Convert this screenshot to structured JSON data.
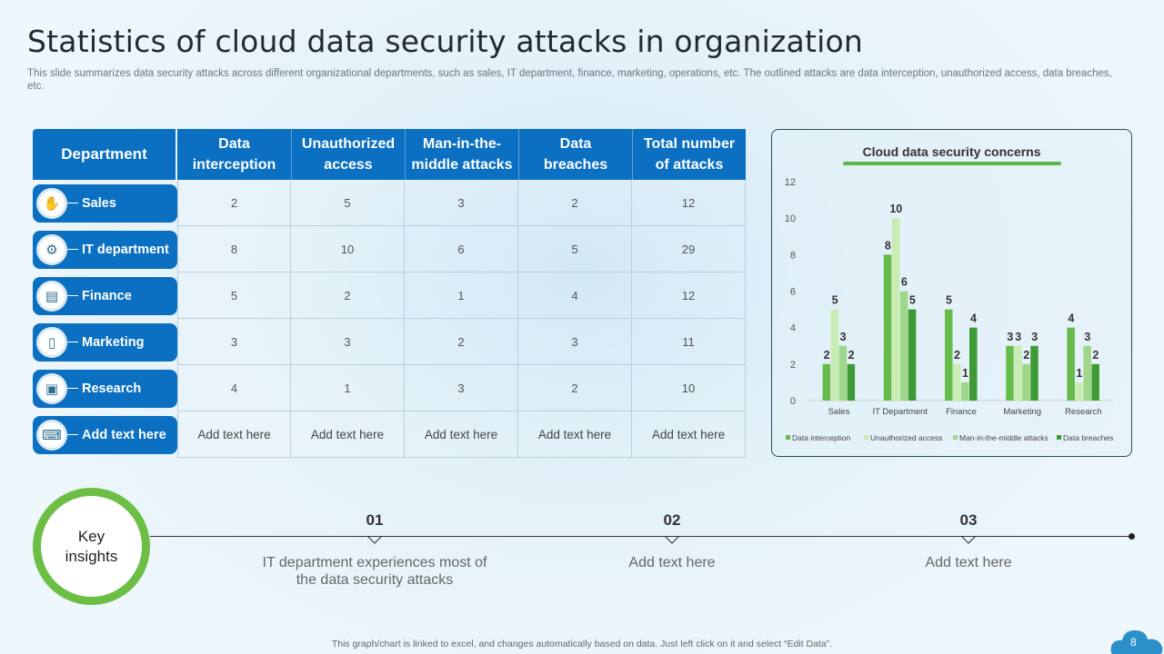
{
  "title": "Statistics of cloud data security attacks in organization",
  "subtitle": "This slide summarizes data security attacks across different organizational departments, such as sales, IT department, finance, marketing, operations, etc. The outlined attacks are data interception, unauthorized access, data breaches, etc.",
  "table": {
    "headers": [
      "Department",
      "Data interception",
      "Unauthorized access",
      "Man-in-the-middle attacks",
      "Data breaches",
      "Total number of attacks"
    ],
    "header_lines": [
      [
        "Data",
        "interception"
      ],
      [
        "Unauthorized",
        "access"
      ],
      [
        "Man-in-the-",
        "middle attacks"
      ],
      [
        "Data",
        "breaches"
      ],
      [
        "Total number",
        "of attacks"
      ]
    ],
    "rows": [
      {
        "department": "Sales",
        "icon": "hand-coin-icon",
        "glyph": "✋",
        "values": [
          "2",
          "5",
          "3",
          "2",
          "12"
        ]
      },
      {
        "department": "IT department",
        "icon": "robot-head-icon",
        "glyph": "⚙",
        "values": [
          "8",
          "10",
          "6",
          "5",
          "29"
        ]
      },
      {
        "department": "Finance",
        "icon": "calculator-icon",
        "glyph": "▤",
        "values": [
          "5",
          "2",
          "1",
          "4",
          "12"
        ]
      },
      {
        "department": "Marketing",
        "icon": "mobile-megaphone-icon",
        "glyph": "▯",
        "values": [
          "3",
          "3",
          "2",
          "3",
          "11"
        ]
      },
      {
        "department": "Research",
        "icon": "presentation-board-icon",
        "glyph": "▣",
        "values": [
          "4",
          "1",
          "3",
          "2",
          "10"
        ]
      },
      {
        "department": "Add text here",
        "icon": "laptop-icon",
        "glyph": "⌨",
        "values": [
          "Add text here",
          "Add text here",
          "Add text here",
          "Add text here",
          "Add text here"
        ]
      }
    ]
  },
  "chart_data": {
    "type": "bar",
    "title": "Cloud data security concerns",
    "categories": [
      "Sales",
      "IT Department",
      "Finance",
      "Marketing",
      "Research"
    ],
    "series": [
      {
        "name": "Data interception",
        "color": "#66bb4a",
        "values": [
          2,
          8,
          5,
          3,
          4
        ]
      },
      {
        "name": "Unauthorized access",
        "color": "#c9ecb4",
        "values": [
          5,
          10,
          2,
          3,
          1
        ]
      },
      {
        "name": "Man-in-the-middle attacks",
        "color": "#9ed68a",
        "values": [
          3,
          6,
          1,
          2,
          3
        ]
      },
      {
        "name": "Data breaches",
        "color": "#3e9a34",
        "values": [
          2,
          5,
          4,
          3,
          2
        ]
      }
    ],
    "ylim": [
      0,
      12
    ],
    "yticks": [
      0,
      2,
      4,
      6,
      8,
      10,
      12
    ],
    "xlabel": "",
    "ylabel": "",
    "legend": "bottom"
  },
  "insights": {
    "label_line1": "Key",
    "label_line2": "insights",
    "items": [
      {
        "number": "01",
        "text": "IT department experiences most of the data security attacks"
      },
      {
        "number": "02",
        "text": "Add text here"
      },
      {
        "number": "03",
        "text": "Add text here"
      }
    ]
  },
  "footer": "This graph/chart is linked to excel, and changes automatically based on data. Just left click on it and select “Edit Data”.",
  "page_number": "8",
  "colors": {
    "brand_blue": "#0b6fc2",
    "accent_green": "#6cbf44"
  }
}
